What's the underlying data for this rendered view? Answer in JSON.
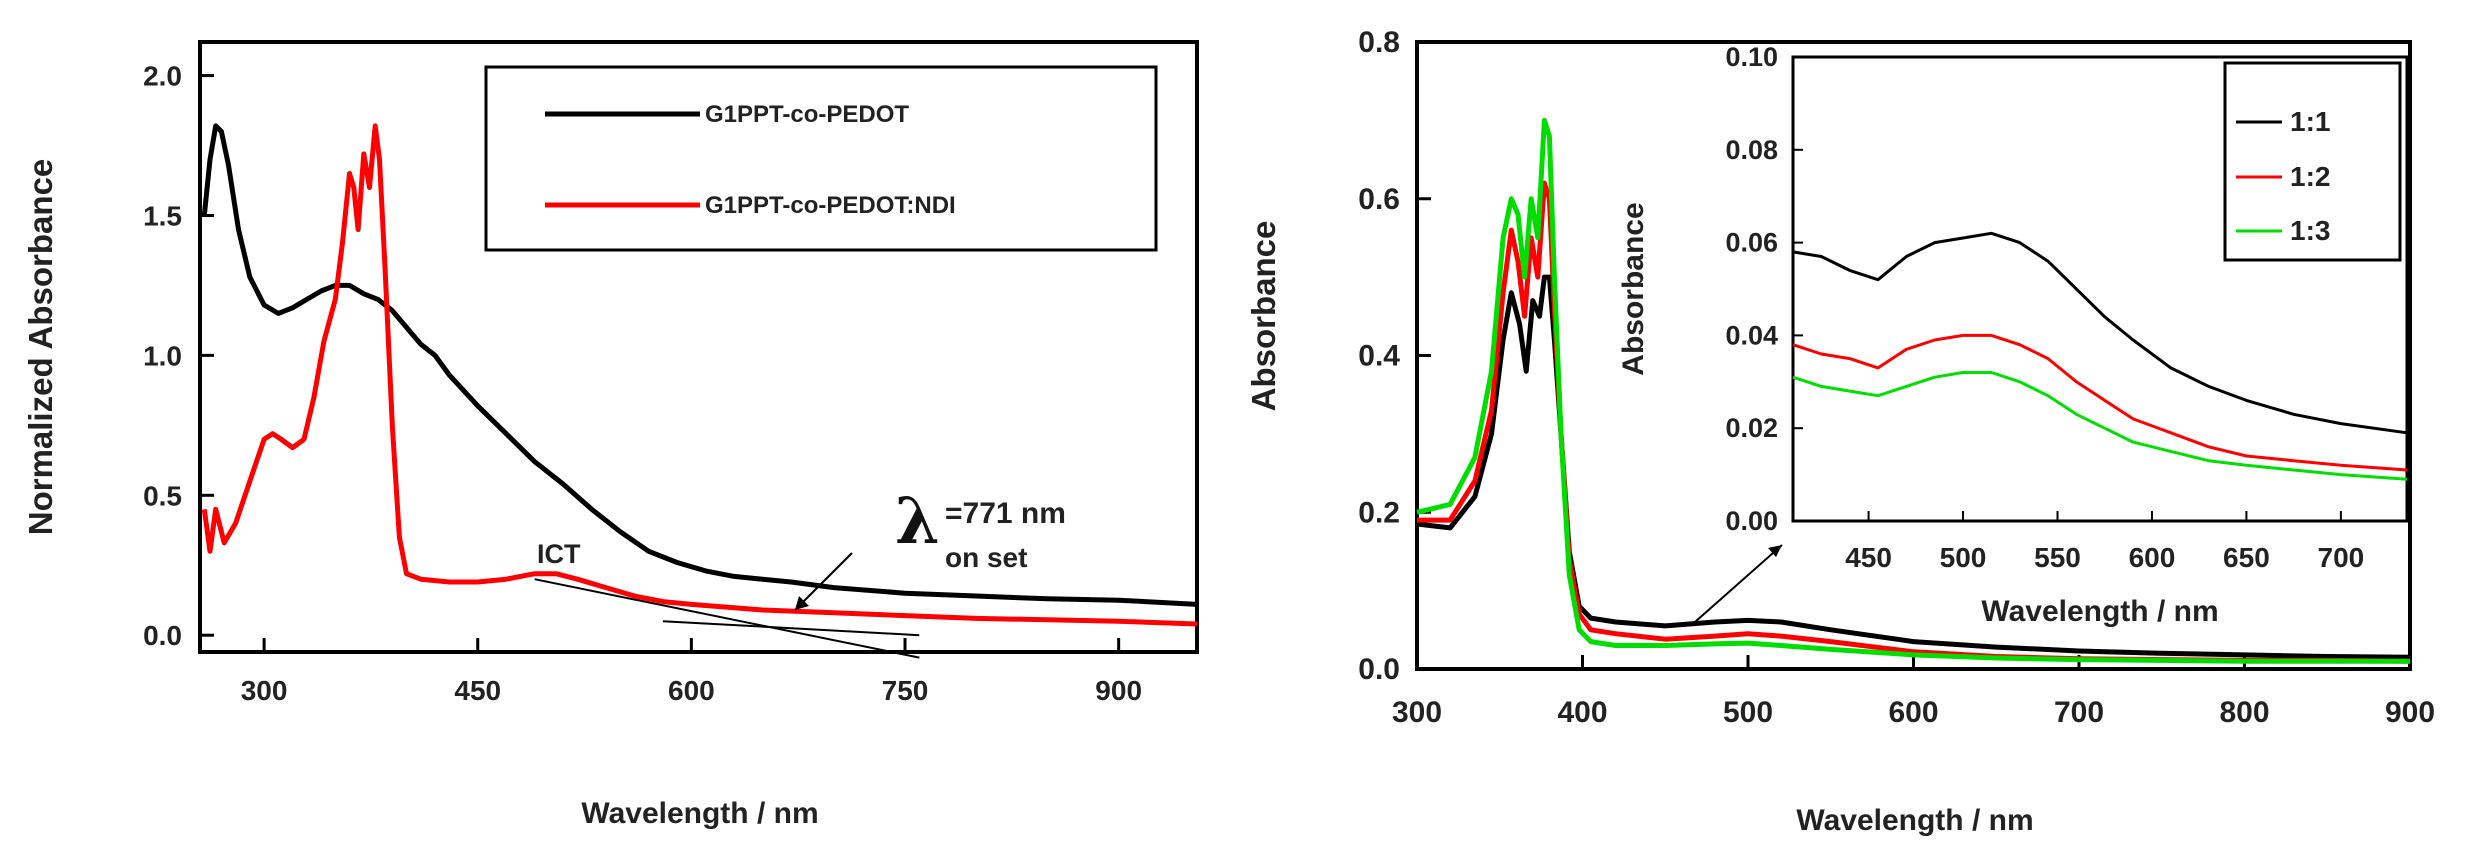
{
  "chart_data": [
    {
      "type": "line",
      "xlabel": "Wavelength / nm",
      "ylabel": "Normalized Absorbance",
      "xlim": [
        255,
        955
      ],
      "ylim": [
        -0.06,
        2.12
      ],
      "xticks": [
        "300",
        "450",
        "600",
        "750",
        "900"
      ],
      "yticks": [
        "0.0",
        "0.5",
        "1.0",
        "1.5",
        "2.0"
      ],
      "legend": {
        "placement": "top-right",
        "entries": [
          "G1PPT-co-PEDOT",
          "G1PPT-co-PEDOT:NDI"
        ]
      },
      "annotations": {
        "ict": "ICT",
        "lambda_symbol": "λ",
        "lambda_value": "=771 nm",
        "lambda_subscript": "on set"
      },
      "series": [
        {
          "name": "G1PPT-co-PEDOT",
          "color": "#000000",
          "x": [
            258,
            262,
            266,
            270,
            275,
            282,
            290,
            300,
            310,
            320,
            330,
            340,
            350,
            360,
            370,
            380,
            390,
            400,
            410,
            420,
            430,
            450,
            470,
            490,
            510,
            530,
            550,
            570,
            590,
            610,
            630,
            650,
            670,
            700,
            750,
            800,
            850,
            900,
            955
          ],
          "y": [
            1.5,
            1.7,
            1.82,
            1.8,
            1.68,
            1.45,
            1.28,
            1.18,
            1.15,
            1.17,
            1.2,
            1.23,
            1.25,
            1.25,
            1.22,
            1.2,
            1.16,
            1.1,
            1.04,
            1.0,
            0.93,
            0.82,
            0.72,
            0.62,
            0.54,
            0.45,
            0.37,
            0.3,
            0.26,
            0.23,
            0.21,
            0.2,
            0.19,
            0.17,
            0.15,
            0.14,
            0.13,
            0.125,
            0.11
          ]
        },
        {
          "name": "G1PPT-co-PEDOT:NDI",
          "color": "#ff0000",
          "x": [
            258,
            262,
            266,
            272,
            280,
            290,
            300,
            306,
            312,
            320,
            328,
            335,
            342,
            350,
            355,
            360,
            363,
            366,
            370,
            374,
            378,
            381,
            385,
            390,
            395,
            400,
            410,
            430,
            450,
            470,
            490,
            505,
            520,
            540,
            560,
            580,
            600,
            650,
            700,
            750,
            800,
            850,
            900,
            955
          ],
          "y": [
            0.45,
            0.3,
            0.45,
            0.33,
            0.4,
            0.55,
            0.7,
            0.72,
            0.7,
            0.67,
            0.7,
            0.85,
            1.05,
            1.2,
            1.4,
            1.65,
            1.6,
            1.45,
            1.72,
            1.6,
            1.82,
            1.7,
            1.3,
            0.75,
            0.35,
            0.22,
            0.2,
            0.19,
            0.19,
            0.2,
            0.22,
            0.22,
            0.2,
            0.17,
            0.14,
            0.12,
            0.11,
            0.09,
            0.08,
            0.07,
            0.06,
            0.055,
            0.05,
            0.04
          ]
        }
      ],
      "onset_lines": [
        {
          "x": [
            490,
            760
          ],
          "y": [
            0.2,
            -0.08
          ]
        },
        {
          "x": [
            580,
            760
          ],
          "y": [
            0.05,
            0.0
          ]
        }
      ]
    },
    {
      "type": "line",
      "xlabel": "Wavelength / nm",
      "ylabel": "Absorbance",
      "xlim": [
        300,
        900
      ],
      "ylim": [
        0.0,
        0.8
      ],
      "xticks": [
        "300",
        "400",
        "500",
        "600",
        "700",
        "800",
        "900"
      ],
      "yticks": [
        "0.0",
        "0.2",
        "0.4",
        "0.6",
        "0.8"
      ],
      "series": [
        {
          "name": "1:1",
          "color": "#000000",
          "x": [
            300,
            320,
            335,
            345,
            352,
            357,
            362,
            366,
            370,
            374,
            377,
            380,
            383,
            387,
            392,
            398,
            405,
            420,
            450,
            480,
            500,
            520,
            550,
            600,
            650,
            700,
            750,
            800,
            850,
            900
          ],
          "y": [
            0.185,
            0.18,
            0.22,
            0.3,
            0.42,
            0.48,
            0.44,
            0.38,
            0.47,
            0.45,
            0.5,
            0.5,
            0.42,
            0.3,
            0.15,
            0.08,
            0.065,
            0.06,
            0.055,
            0.06,
            0.062,
            0.06,
            0.05,
            0.035,
            0.028,
            0.023,
            0.02,
            0.018,
            0.016,
            0.015
          ]
        },
        {
          "name": "1:2",
          "color": "#ff0000",
          "x": [
            300,
            320,
            335,
            345,
            352,
            357,
            361,
            365,
            369,
            373,
            377,
            380,
            383,
            387,
            392,
            398,
            405,
            420,
            450,
            480,
            500,
            520,
            550,
            600,
            650,
            700,
            750,
            800,
            850,
            900
          ],
          "y": [
            0.19,
            0.19,
            0.24,
            0.33,
            0.48,
            0.56,
            0.52,
            0.45,
            0.55,
            0.5,
            0.62,
            0.6,
            0.46,
            0.3,
            0.14,
            0.07,
            0.05,
            0.045,
            0.038,
            0.042,
            0.045,
            0.042,
            0.035,
            0.022,
            0.016,
            0.013,
            0.012,
            0.011,
            0.011,
            0.01
          ]
        },
        {
          "name": "1:3",
          "color": "#00dd00",
          "x": [
            300,
            320,
            335,
            345,
            352,
            357,
            361,
            365,
            369,
            373,
            377,
            380,
            383,
            387,
            392,
            398,
            405,
            420,
            450,
            480,
            500,
            520,
            550,
            600,
            650,
            700,
            750,
            800,
            850,
            900
          ],
          "y": [
            0.2,
            0.21,
            0.27,
            0.38,
            0.55,
            0.6,
            0.58,
            0.5,
            0.6,
            0.55,
            0.7,
            0.68,
            0.5,
            0.3,
            0.12,
            0.05,
            0.035,
            0.03,
            0.03,
            0.032,
            0.033,
            0.03,
            0.025,
            0.018,
            0.014,
            0.012,
            0.011,
            0.01,
            0.01,
            0.01
          ]
        }
      ],
      "inset": {
        "xlabel": "Wavelength / nm",
        "ylabel": "Absorbance",
        "xlim": [
          410,
          735
        ],
        "ylim": [
          0.0,
          0.1
        ],
        "xticks": [
          "450",
          "500",
          "550",
          "600",
          "650",
          "700"
        ],
        "yticks": [
          "0.00",
          "0.02",
          "0.04",
          "0.06",
          "0.08",
          "0.10"
        ],
        "legend": {
          "placement": "top-right",
          "entries": [
            "1:1",
            "1:2",
            "1:3"
          ]
        },
        "series": [
          {
            "name": "1:1",
            "color": "#000000",
            "x": [
              410,
              425,
              440,
              455,
              470,
              485,
              500,
              515,
              530,
              545,
              560,
              575,
              590,
              610,
              630,
              650,
              675,
              700,
              735
            ],
            "y": [
              0.058,
              0.057,
              0.054,
              0.052,
              0.057,
              0.06,
              0.061,
              0.062,
              0.06,
              0.056,
              0.05,
              0.044,
              0.039,
              0.033,
              0.029,
              0.026,
              0.023,
              0.021,
              0.019
            ]
          },
          {
            "name": "1:2",
            "color": "#ff0000",
            "x": [
              410,
              425,
              440,
              455,
              470,
              485,
              500,
              515,
              530,
              545,
              560,
              575,
              590,
              610,
              630,
              650,
              675,
              700,
              735
            ],
            "y": [
              0.038,
              0.036,
              0.035,
              0.033,
              0.037,
              0.039,
              0.04,
              0.04,
              0.038,
              0.035,
              0.03,
              0.026,
              0.022,
              0.019,
              0.016,
              0.014,
              0.013,
              0.012,
              0.011
            ]
          },
          {
            "name": "1:3",
            "color": "#00dd00",
            "x": [
              410,
              425,
              440,
              455,
              470,
              485,
              500,
              515,
              530,
              545,
              560,
              575,
              590,
              610,
              630,
              650,
              675,
              700,
              735
            ],
            "y": [
              0.031,
              0.029,
              0.028,
              0.027,
              0.029,
              0.031,
              0.032,
              0.032,
              0.03,
              0.027,
              0.023,
              0.02,
              0.017,
              0.015,
              0.013,
              0.012,
              0.011,
              0.01,
              0.009
            ]
          }
        ]
      }
    }
  ]
}
